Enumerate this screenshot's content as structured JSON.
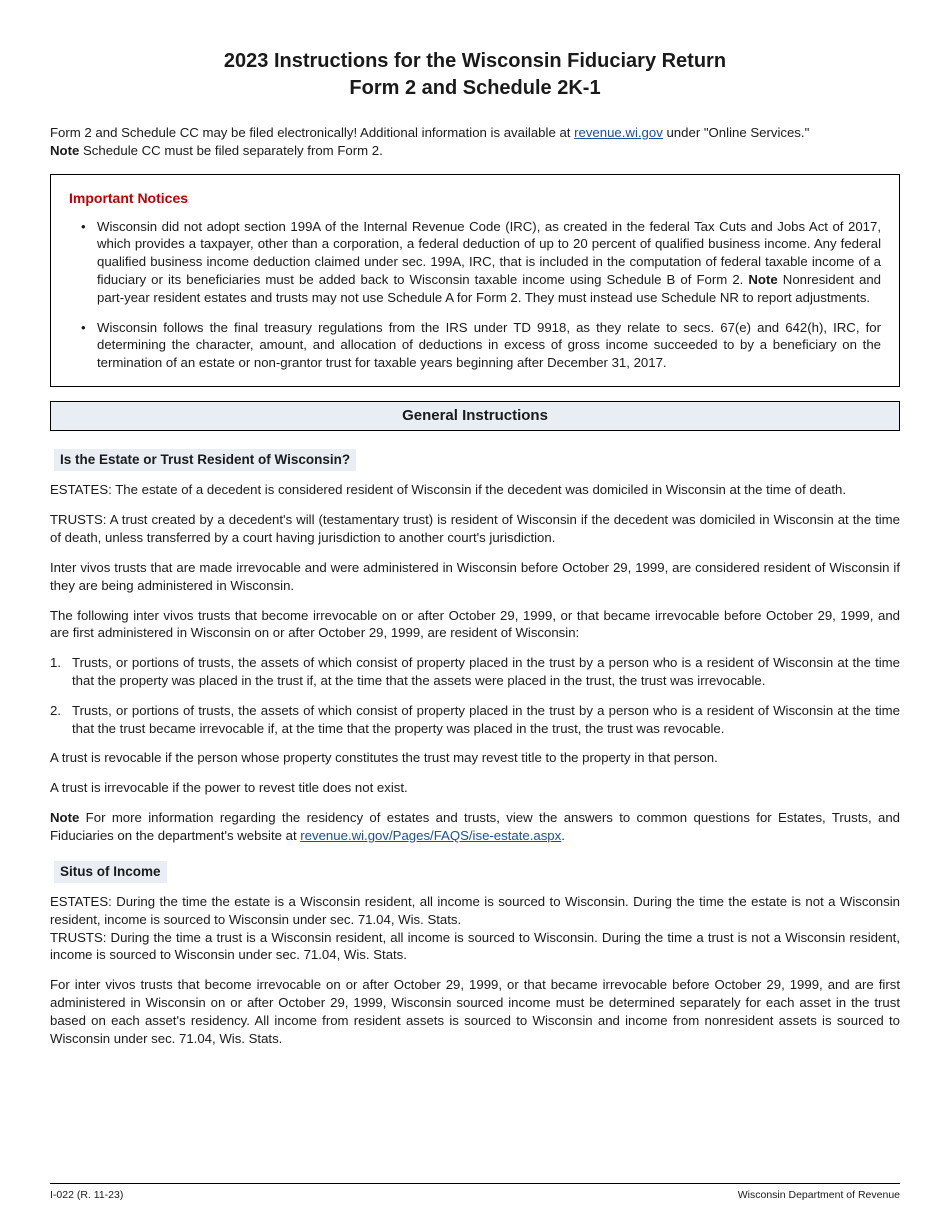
{
  "colors": {
    "link": "#1a4fa0",
    "notice_title": "#c00000",
    "section_bg": "#e8eef4",
    "border": "#000000",
    "text": "#1a1a1a",
    "background": "#ffffff"
  },
  "title_line1": "2023 Instructions for the Wisconsin Fiduciary Return",
  "title_line2": "Form 2 and Schedule 2K-1",
  "intro_pre": "Form 2 and Schedule CC may be filed electronically! Additional information is available at ",
  "intro_link": "revenue.wi.gov",
  "intro_post": " under \"Online Services.\"",
  "intro_note_label": "Note",
  "intro_note_text": "  Schedule CC must be filed separately from Form 2.",
  "notices": {
    "heading": "Important Notices",
    "items": [
      {
        "pre": "Wisconsin did not adopt section 199A of the Internal Revenue Code (IRC), as created in the federal Tax Cuts and Jobs Act of 2017, which provides a taxpayer, other than a corporation, a federal deduction of up to 20 percent of qualified business income. Any federal qualified business income deduction claimed under sec. 199A, IRC, that is included in the computation of federal taxable income of a fiduciary or its beneficiaries must be added back to Wisconsin taxable income using Schedule B of Form 2. ",
        "note_label": "Note",
        "post": "  Nonresident and part-year resident estates and trusts may not use Schedule A for Form 2. They must instead use Schedule NR to report adjustments."
      },
      {
        "pre": "Wisconsin follows the final treasury regulations from the IRS under TD 9918, as they relate to secs. 67(e) and 642(h), IRC, for determining the character, amount, and allocation of deductions in excess of gross income succeeded to by a beneficiary on the termination of an estate or non-grantor trust for taxable years beginning after December 31, 2017.",
        "note_label": "",
        "post": ""
      }
    ]
  },
  "section_title": "General Instructions",
  "sub1": {
    "heading": "Is the Estate or Trust Resident of Wisconsin?",
    "p1": "ESTATES: The estate of a decedent is considered resident of Wisconsin if the decedent was domiciled in Wisconsin at the time of death.",
    "p2": "TRUSTS: A trust created by a decedent's will (testamentary trust) is resident of Wisconsin if the decedent was domiciled in Wisconsin at the time of death, unless transferred by a court having jurisdiction to another court's jurisdiction.",
    "p3": "Inter vivos trusts that are made irrevocable and were administered in Wisconsin before October 29, 1999, are considered resident of Wisconsin if they are being administered in Wisconsin.",
    "p4": "The following inter vivos trusts that become irrevocable on or after October 29, 1999, or that became irrevocable before October 29, 1999, and are first administered in Wisconsin on or after October 29, 1999, are resident of Wisconsin:",
    "li1": "Trusts, or portions of trusts, the assets of which consist of property placed in the trust by a person who is a resident of Wisconsin at the time that the property was placed in the trust if, at the time that the assets were placed in the trust, the trust was irrevocable.",
    "li2": "Trusts, or portions of trusts, the assets of which consist of property placed in the trust by a person who is a resident of Wisconsin at the time that the trust became irrevocable if, at the time that the property was placed in the trust, the trust was revocable.",
    "p5": "A trust is revocable if the person whose property constitutes the trust may revest title to the property in that person.",
    "p6": "A trust is irrevocable if the power to revest title does not exist.",
    "note_label": "Note",
    "note_pre": "  For more information regarding the residency of estates and trusts, view the answers to common questions for Estates, Trusts, and Fiduciaries on the department's website at ",
    "note_link": "revenue.wi.gov/Pages/FAQS/ise-estate.aspx",
    "note_post": "."
  },
  "sub2": {
    "heading": "Situs of Income",
    "p1": "ESTATES: During the time the estate is a Wisconsin resident, all income is sourced to Wisconsin. During the time the estate is not a Wisconsin resident, income is sourced to Wisconsin under sec. 71.04, Wis. Stats.",
    "p2": "TRUSTS: During the time a trust is a Wisconsin resident, all income is sourced to Wisconsin. During the time a trust is not a Wisconsin resident, income is sourced to Wisconsin under sec. 71.04, Wis. Stats.",
    "p3": "For inter vivos trusts that become irrevocable on or after October 29, 1999, or that became irrevocable before October 29, 1999, and are first administered in Wisconsin on or after October 29, 1999, Wisconsin sourced income must be determined separately for each asset in the trust based on each asset's residency. All income from resident assets is sourced to Wisconsin and income from nonresident assets is sourced to Wisconsin under sec. 71.04, Wis. Stats."
  },
  "footer": {
    "left": "I-022 (R. 11-23)",
    "right": "Wisconsin Department of Revenue"
  }
}
